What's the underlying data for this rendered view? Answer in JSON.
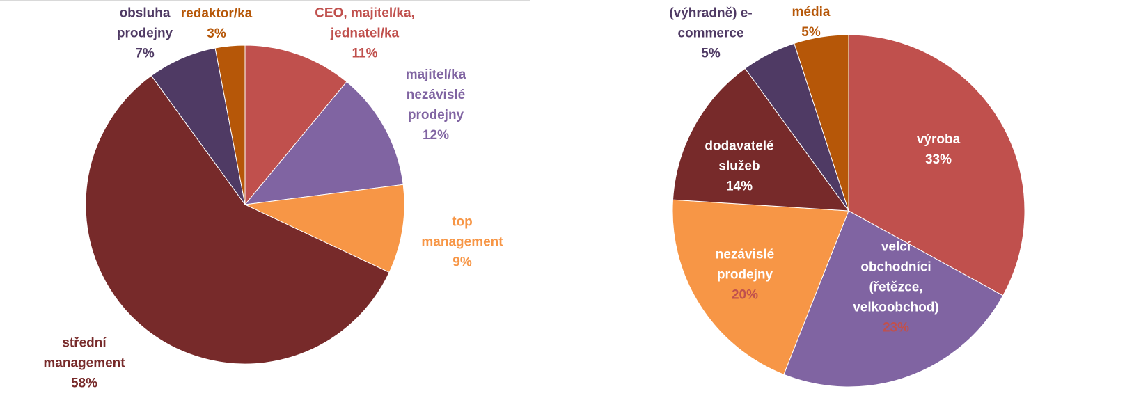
{
  "chart_data": [
    {
      "type": "pie",
      "slices": [
        {
          "label": "CEO, majitel/ka, jednatel/ka",
          "value": 11,
          "value_label": "11%",
          "color": "#C0504D",
          "label_color": "#C0504D",
          "value_color": "#C0504D"
        },
        {
          "label": "majitel/ka nezávislé prodejny",
          "value": 12,
          "value_label": "12%",
          "color": "#8064A2",
          "label_color": "#8064A2",
          "value_color": "#8064A2"
        },
        {
          "label": "top management",
          "value": 9,
          "value_label": "9%",
          "color": "#F79646",
          "label_color": "#F79646",
          "value_color": "#F79646"
        },
        {
          "label": "střední management",
          "value": 58,
          "value_label": "58%",
          "color": "#772A2A",
          "label_color": "#772A2A",
          "value_color": "#772A2A"
        },
        {
          "label": "obsluha prodejny",
          "value": 7,
          "value_label": "7%",
          "color": "#4F3A64",
          "label_color": "#4F3A64",
          "value_color": "#4F3A64"
        },
        {
          "label": "redaktor/ka",
          "value": 3,
          "value_label": "3%",
          "color": "#B65708",
          "label_color": "#B65708",
          "value_color": "#B65708"
        }
      ]
    },
    {
      "type": "pie",
      "slices": [
        {
          "label": "výroba",
          "value": 33,
          "value_label": "33%",
          "color": "#C0504D",
          "label_color": "#FFFFFF",
          "value_color": "#FFFFFF"
        },
        {
          "label": "velcí obchodníci (řetězce, velkoobchod)",
          "value": 23,
          "value_label": "23%",
          "color": "#8064A2",
          "label_color": "#FFFFFF",
          "value_color": "#C0504D"
        },
        {
          "label": "nezávislé prodejny",
          "value": 20,
          "value_label": "20%",
          "color": "#F79646",
          "label_color": "#FFFFFF",
          "value_color": "#C0504D"
        },
        {
          "label": "dodavatelé služeb",
          "value": 14,
          "value_label": "14%",
          "color": "#772A2A",
          "label_color": "#FFFFFF",
          "value_color": "#FFFFFF"
        },
        {
          "label": "(výhradně) e-commerce",
          "value": 5,
          "value_label": "5%",
          "color": "#4F3A64",
          "label_color": "#4F3A64",
          "value_color": "#4F3A64"
        },
        {
          "label": "média",
          "value": 5,
          "value_label": "5%",
          "color": "#B65708",
          "label_color": "#B65708",
          "value_color": "#B65708"
        }
      ]
    }
  ]
}
